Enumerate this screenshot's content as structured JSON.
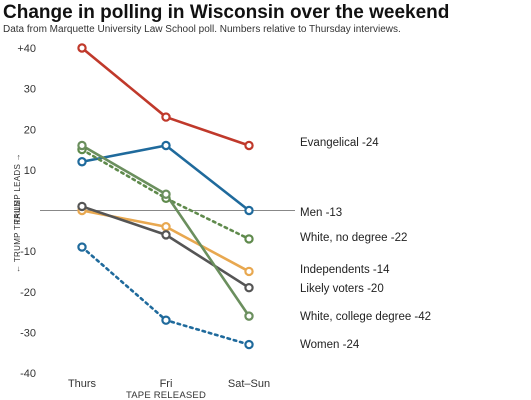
{
  "title": "Change in polling in Wisconsin over the weekend",
  "subtitle": "Data from Marquette University Law School poll. Numbers relative to Thursday interviews.",
  "chart_data": {
    "type": "line",
    "categories": [
      "Thurs",
      "Fri",
      "Sat–Sun"
    ],
    "xlabel": "TAPE RELEASED",
    "ylabel_top": "TRUMP LEADS →",
    "ylabel_bottom": "← TRUMP TRAILS",
    "ylim": [
      -40,
      40
    ],
    "yticks": [
      40,
      30,
      20,
      10,
      0,
      -10,
      -20,
      -30,
      -40
    ],
    "ytick_labels": [
      "+40",
      "30",
      "20",
      "10",
      "",
      "-10",
      "-20",
      "-30",
      "-40"
    ],
    "grid": false,
    "series": [
      {
        "name": "Evangelical -24",
        "color": "#c0392b",
        "dash": false,
        "values": [
          40,
          23,
          16
        ]
      },
      {
        "name": "Men -13",
        "color": "#1f6a9c",
        "dash": false,
        "values": [
          12,
          16,
          0
        ]
      },
      {
        "name": "White, no degree -22",
        "color": "#5f8a4c",
        "dash": true,
        "values": [
          15,
          3,
          -7
        ]
      },
      {
        "name": "Independents -14",
        "color": "#e8a850",
        "dash": false,
        "values": [
          0,
          -4,
          -15
        ]
      },
      {
        "name": "Likely voters -20",
        "color": "#555555",
        "dash": false,
        "values": [
          1,
          -6,
          -19
        ]
      },
      {
        "name": "White, college degree -42",
        "color": "#6b8f5e",
        "dash": false,
        "values": [
          16,
          4,
          -26
        ]
      },
      {
        "name": "Women -24",
        "color": "#1f6a9c",
        "dash": true,
        "values": [
          -9,
          -27,
          -33
        ]
      }
    ]
  }
}
